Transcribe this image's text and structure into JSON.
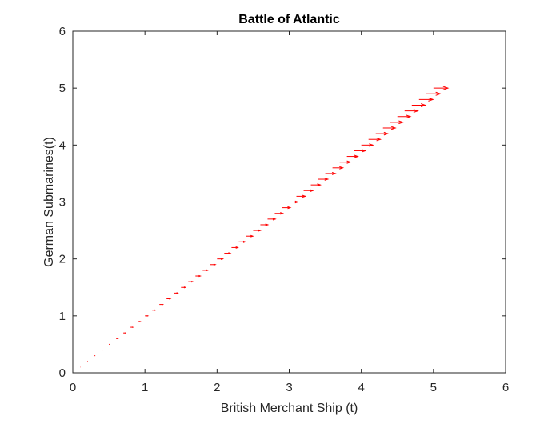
{
  "chart_data": {
    "type": "quiver",
    "title": "Battle of Atlantic",
    "xlabel": "British Merchant Ship (t)",
    "ylabel": "German Submarines(t)",
    "xlim": [
      0,
      6
    ],
    "ylim": [
      0,
      6
    ],
    "xticks": [
      "0",
      "1",
      "2",
      "3",
      "4",
      "5",
      "6"
    ],
    "yticks": [
      "0",
      "1",
      "2",
      "3",
      "4",
      "5",
      "6"
    ],
    "grid": false,
    "box": true,
    "series": [
      {
        "color": "#ff0000",
        "x": [
          0.1,
          0.2,
          0.3,
          0.4,
          0.5,
          0.6,
          0.7,
          0.8,
          0.9,
          1.0,
          1.1,
          1.2,
          1.3,
          1.4,
          1.5,
          1.6,
          1.7,
          1.8,
          1.9,
          2.0,
          2.1,
          2.2,
          2.3,
          2.4,
          2.5,
          2.6,
          2.7,
          2.8,
          2.9,
          3.0,
          3.1,
          3.2,
          3.3,
          3.4,
          3.5,
          3.6,
          3.7,
          3.8,
          3.9,
          4.0,
          4.1,
          4.2,
          4.3,
          4.4,
          4.5,
          4.6,
          4.7,
          4.8,
          4.9,
          5.0
        ],
        "y": [
          0.1,
          0.2,
          0.3,
          0.4,
          0.5,
          0.6,
          0.7,
          0.8,
          0.9,
          1.0,
          1.1,
          1.2,
          1.3,
          1.4,
          1.5,
          1.6,
          1.7,
          1.8,
          1.9,
          2.0,
          2.1,
          2.2,
          2.3,
          2.4,
          2.5,
          2.6,
          2.7,
          2.8,
          2.9,
          3.0,
          3.1,
          3.2,
          3.3,
          3.4,
          3.5,
          3.6,
          3.7,
          3.8,
          3.9,
          4.0,
          4.1,
          4.2,
          4.3,
          4.4,
          4.5,
          4.6,
          4.7,
          4.8,
          4.9,
          5.0
        ],
        "u": [
          0.004,
          0.008,
          0.012,
          0.016,
          0.02,
          0.024,
          0.028,
          0.032,
          0.036,
          0.04,
          0.044,
          0.048,
          0.052,
          0.056,
          0.06,
          0.064,
          0.068,
          0.072,
          0.076,
          0.08,
          0.084,
          0.088,
          0.092,
          0.096,
          0.1,
          0.104,
          0.108,
          0.112,
          0.116,
          0.12,
          0.124,
          0.128,
          0.132,
          0.136,
          0.14,
          0.144,
          0.148,
          0.152,
          0.156,
          0.16,
          0.164,
          0.168,
          0.172,
          0.176,
          0.18,
          0.184,
          0.188,
          0.192,
          0.196,
          0.2
        ],
        "v": [
          0,
          0,
          0,
          0,
          0,
          0,
          0,
          0,
          0,
          0,
          0,
          0,
          0,
          0,
          0,
          0,
          0,
          0,
          0,
          0,
          0,
          0,
          0,
          0,
          0,
          0,
          0,
          0,
          0,
          0,
          0,
          0,
          0,
          0,
          0,
          0,
          0,
          0,
          0,
          0,
          0,
          0,
          0,
          0,
          0,
          0,
          0,
          0,
          0,
          0
        ]
      }
    ]
  }
}
